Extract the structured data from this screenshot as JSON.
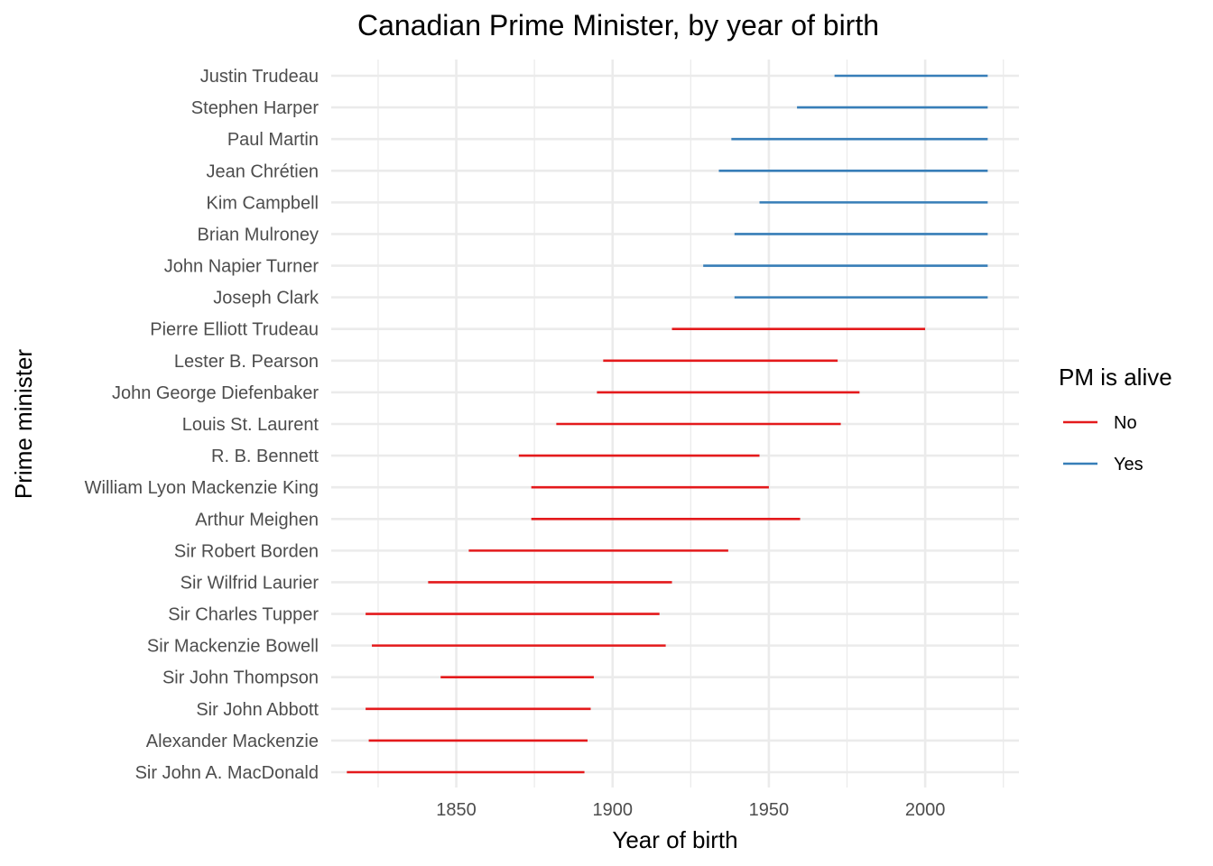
{
  "chart_data": {
    "type": "line",
    "title": "Canadian Prime Minister, by year of birth",
    "xlabel": "Year of birth",
    "ylabel": "Prime minister",
    "xlim": [
      1810,
      2030
    ],
    "x_ticks": [
      1850,
      1900,
      1950,
      2000
    ],
    "grid": true,
    "legend": {
      "title": "PM is alive",
      "position": "right",
      "entries": [
        {
          "label": "No",
          "color": "#e41a1c"
        },
        {
          "label": "Yes",
          "color": "#377eb8"
        }
      ]
    },
    "series": [
      {
        "name": "Sir John A. MacDonald",
        "start": 1815,
        "end": 1891,
        "alive": "No"
      },
      {
        "name": "Alexander Mackenzie",
        "start": 1822,
        "end": 1892,
        "alive": "No"
      },
      {
        "name": "Sir John Abbott",
        "start": 1821,
        "end": 1893,
        "alive": "No"
      },
      {
        "name": "Sir John Thompson",
        "start": 1845,
        "end": 1894,
        "alive": "No"
      },
      {
        "name": "Sir Mackenzie Bowell",
        "start": 1823,
        "end": 1917,
        "alive": "No"
      },
      {
        "name": "Sir Charles Tupper",
        "start": 1821,
        "end": 1915,
        "alive": "No"
      },
      {
        "name": "Sir Wilfrid Laurier",
        "start": 1841,
        "end": 1919,
        "alive": "No"
      },
      {
        "name": "Sir Robert Borden",
        "start": 1854,
        "end": 1937,
        "alive": "No"
      },
      {
        "name": "Arthur Meighen",
        "start": 1874,
        "end": 1960,
        "alive": "No"
      },
      {
        "name": "William Lyon Mackenzie King",
        "start": 1874,
        "end": 1950,
        "alive": "No"
      },
      {
        "name": "R. B. Bennett",
        "start": 1870,
        "end": 1947,
        "alive": "No"
      },
      {
        "name": "Louis St. Laurent",
        "start": 1882,
        "end": 1973,
        "alive": "No"
      },
      {
        "name": "John George Diefenbaker",
        "start": 1895,
        "end": 1979,
        "alive": "No"
      },
      {
        "name": "Lester B. Pearson",
        "start": 1897,
        "end": 1972,
        "alive": "No"
      },
      {
        "name": "Pierre Elliott Trudeau",
        "start": 1919,
        "end": 2000,
        "alive": "No"
      },
      {
        "name": "Joseph Clark",
        "start": 1939,
        "end": 2020,
        "alive": "Yes"
      },
      {
        "name": "John Napier Turner",
        "start": 1929,
        "end": 2020,
        "alive": "Yes"
      },
      {
        "name": "Brian Mulroney",
        "start": 1939,
        "end": 2020,
        "alive": "Yes"
      },
      {
        "name": "Kim Campbell",
        "start": 1947,
        "end": 2020,
        "alive": "Yes"
      },
      {
        "name": "Jean Chrétien",
        "start": 1934,
        "end": 2020,
        "alive": "Yes"
      },
      {
        "name": "Paul Martin",
        "start": 1938,
        "end": 2020,
        "alive": "Yes"
      },
      {
        "name": "Stephen Harper",
        "start": 1959,
        "end": 2020,
        "alive": "Yes"
      },
      {
        "name": "Justin Trudeau",
        "start": 1971,
        "end": 2020,
        "alive": "Yes"
      }
    ]
  }
}
